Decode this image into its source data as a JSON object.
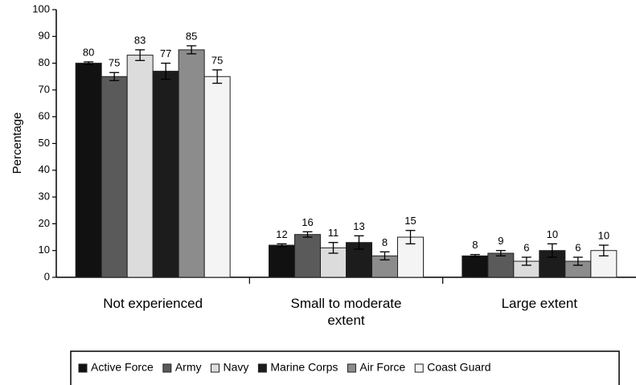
{
  "chart_data": {
    "type": "bar",
    "y_label": "Percentage",
    "categories": [
      "Not experienced",
      "Small to moderate extent",
      "Large extent"
    ],
    "series": [
      {
        "name": "Active Force",
        "color": "#111111",
        "values": [
          80,
          12,
          8
        ],
        "errors": [
          0.5,
          0.5,
          0.5
        ]
      },
      {
        "name": "Army",
        "color": "#5a5a5a",
        "values": [
          75,
          16,
          9
        ],
        "errors": [
          1.5,
          1,
          1
        ]
      },
      {
        "name": "Navy",
        "color": "#dcdcdc",
        "values": [
          83,
          11,
          6
        ],
        "errors": [
          2,
          2,
          1.5
        ]
      },
      {
        "name": "Marine Corps",
        "color": "#1c1c1c",
        "values": [
          77,
          13,
          10
        ],
        "errors": [
          3,
          2.5,
          2.5
        ]
      },
      {
        "name": "Air Force",
        "color": "#8c8c8c",
        "values": [
          85,
          8,
          6
        ],
        "errors": [
          1.5,
          1.5,
          1.5
        ]
      },
      {
        "name": "Coast Guard",
        "color": "#f4f4f4",
        "values": [
          75,
          15,
          10
        ],
        "errors": [
          2.5,
          2.5,
          2
        ]
      }
    ],
    "ylim": [
      0,
      100
    ],
    "yticks": [
      0,
      10,
      20,
      30,
      40,
      50,
      60,
      70,
      80,
      90,
      100
    ],
    "legend": "bottom"
  }
}
